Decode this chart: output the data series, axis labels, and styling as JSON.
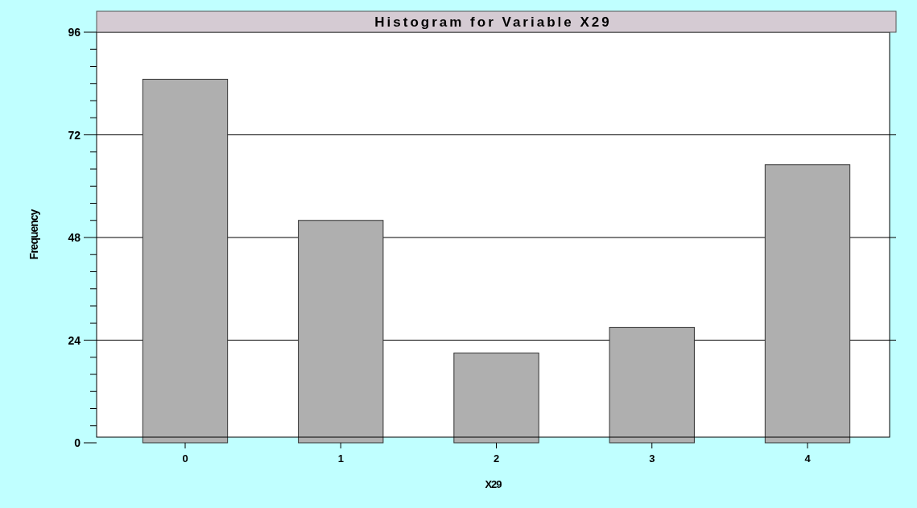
{
  "chart_data": {
    "type": "bar",
    "title": "Histogram for Variable X29",
    "xlabel": "X29",
    "ylabel": "Frequency",
    "categories": [
      "0",
      "1",
      "2",
      "3",
      "4"
    ],
    "values": [
      85,
      52,
      21,
      27,
      65
    ],
    "color": "#afafaf",
    "ylim": [
      0,
      96
    ],
    "yticks": [
      0,
      {
        "value": 4,
        "label": null
      },
      {
        "value": 8,
        "label": null
      },
      {
        "value": 12,
        "label": null
      },
      {
        "value": 16,
        "label": null
      },
      {
        "value": 20,
        "label": null
      },
      24,
      {
        "value": 28,
        "label": null
      },
      {
        "value": 32,
        "label": null
      },
      {
        "value": 36,
        "label": null
      },
      {
        "value": 40,
        "label": null
      },
      {
        "value": 44,
        "label": null
      },
      48,
      {
        "value": 52,
        "label": null
      },
      {
        "value": 56,
        "label": null
      },
      {
        "value": 60,
        "label": null
      },
      {
        "value": 64,
        "label": null
      },
      {
        "value": 68,
        "label": null
      },
      72,
      {
        "value": 76,
        "label": null
      },
      {
        "value": 80,
        "label": null
      },
      {
        "value": 84,
        "label": null
      },
      {
        "value": 88,
        "label": null
      },
      {
        "value": 92,
        "label": null
      },
      96
    ],
    "grid": "y"
  }
}
